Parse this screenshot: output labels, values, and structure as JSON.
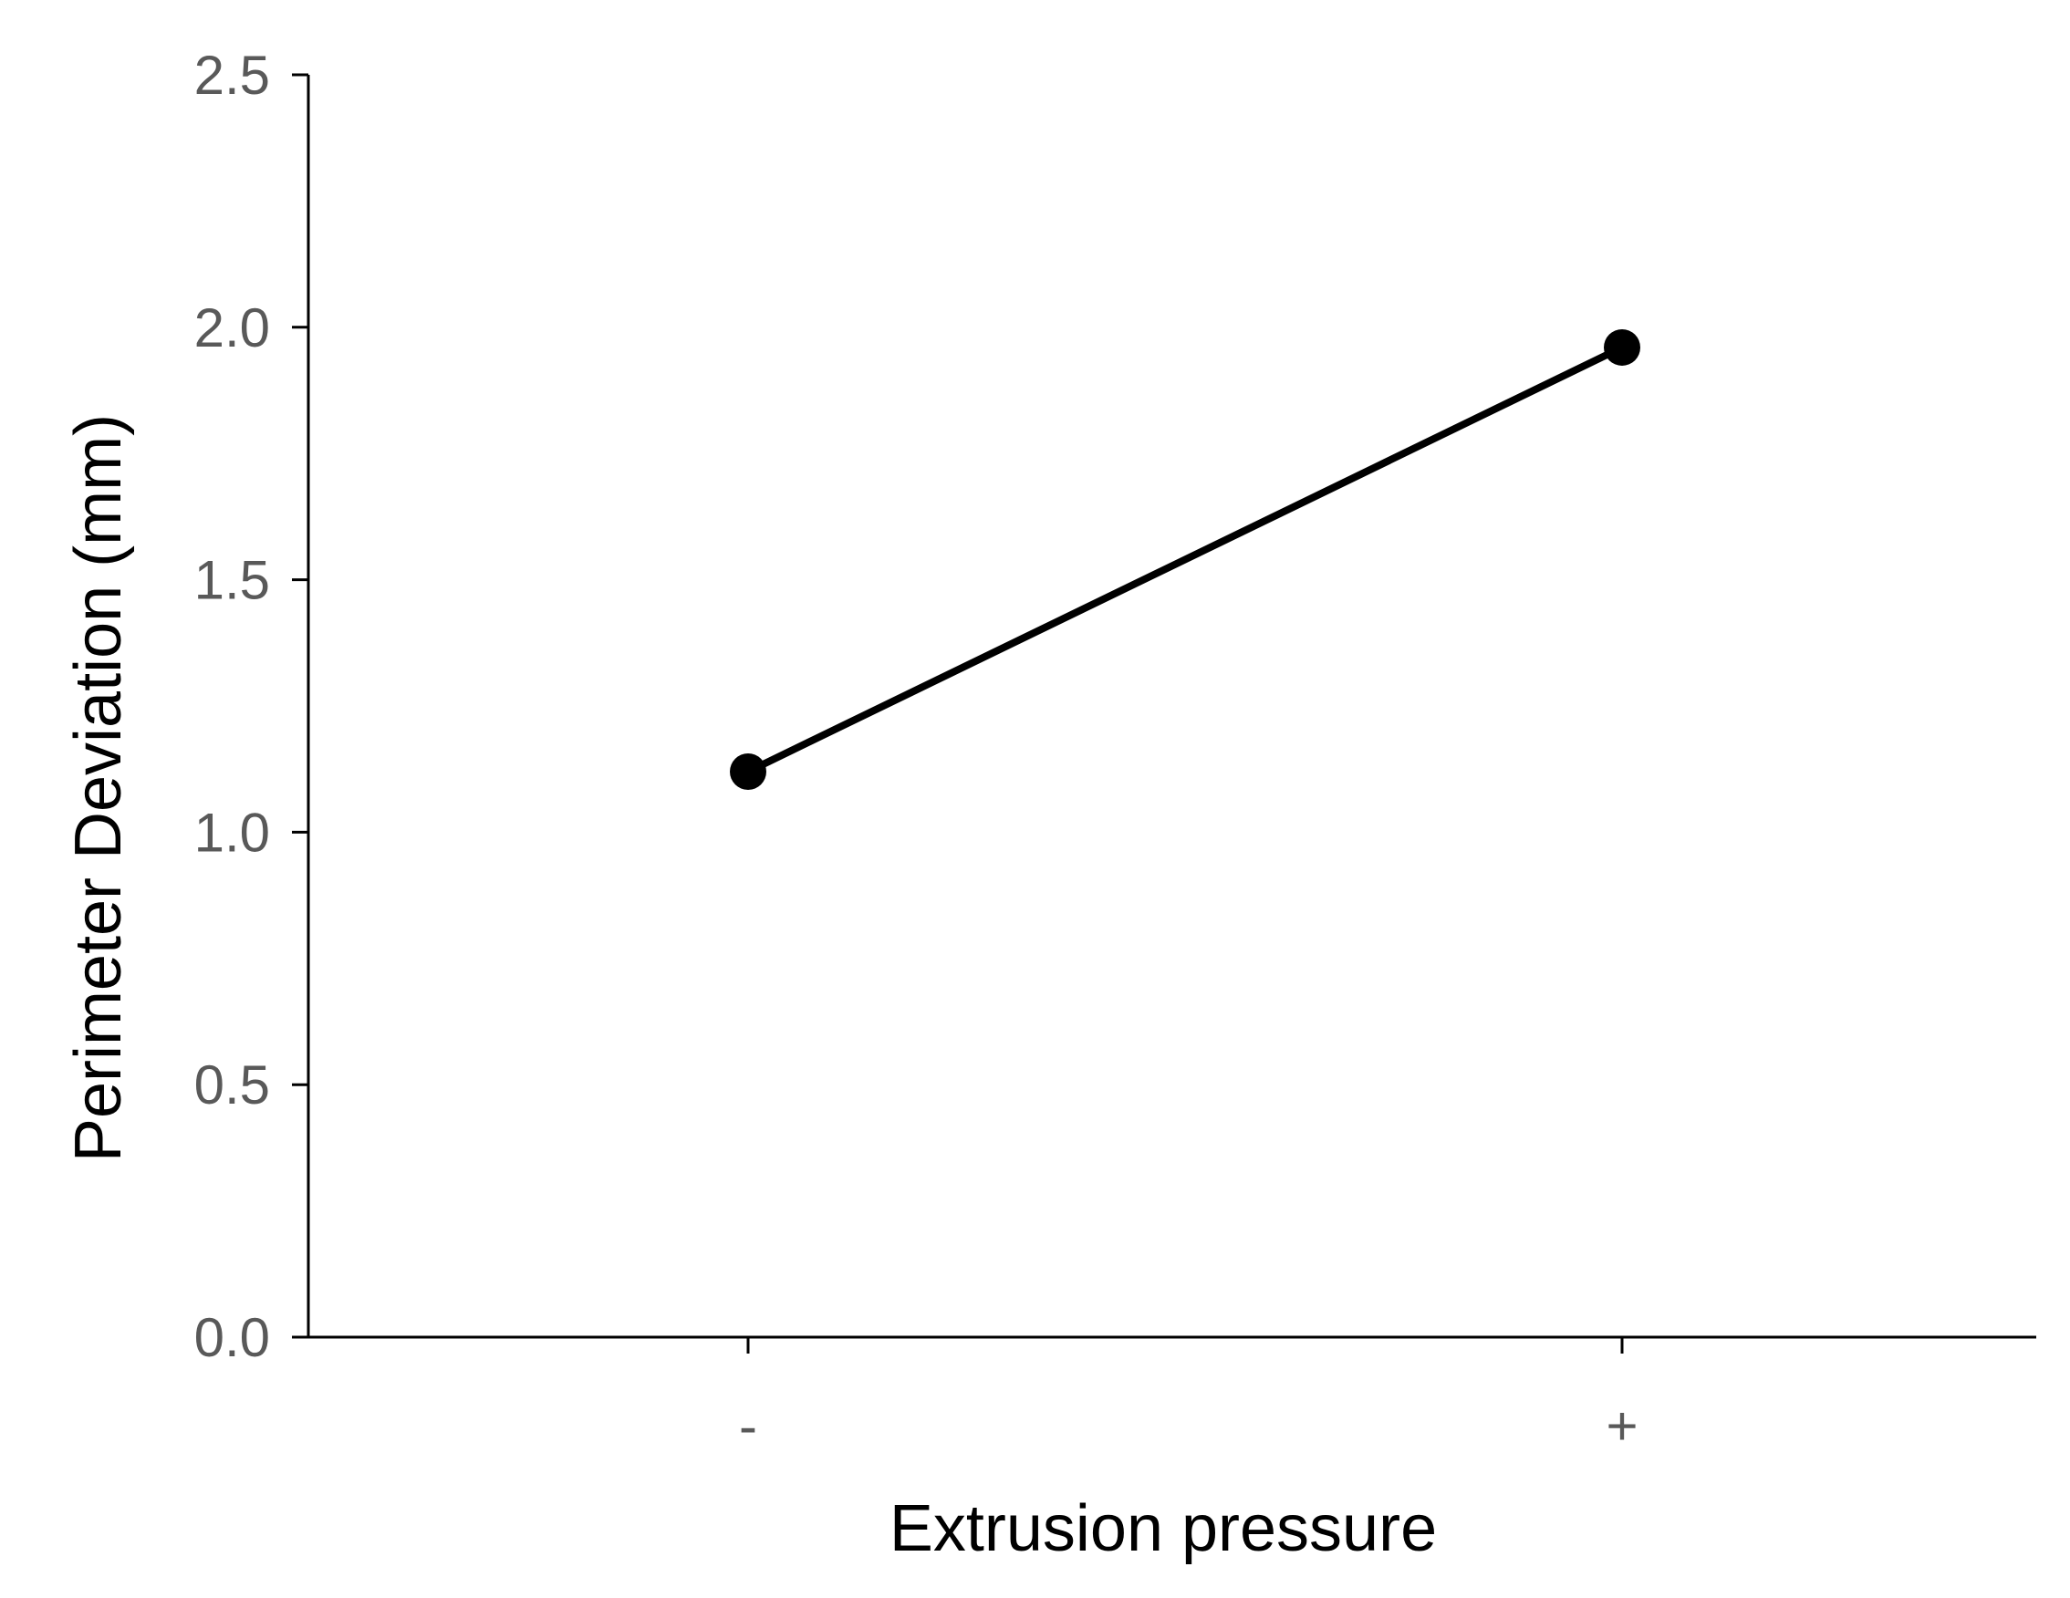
{
  "chart_data": {
    "type": "line",
    "title": "",
    "xlabel": "Extrusion pressure",
    "ylabel": "Perimeter Deviation (mm)",
    "categories": [
      "-",
      "+"
    ],
    "series": [
      {
        "values": [
          1.12,
          1.96
        ]
      }
    ],
    "ylim": [
      0,
      2.5
    ],
    "yticks": [
      0,
      0.5,
      1.0,
      1.5,
      2.0,
      2.5
    ],
    "ytick_labels": [
      "0.0",
      "0.5",
      "1.0",
      "1.5",
      "2.0",
      "2.5"
    ],
    "grid": false,
    "legend": "none",
    "colors": {
      "line": "#000000",
      "marker": "#000000",
      "axis": "#000000",
      "tick_label": "#595959"
    }
  }
}
